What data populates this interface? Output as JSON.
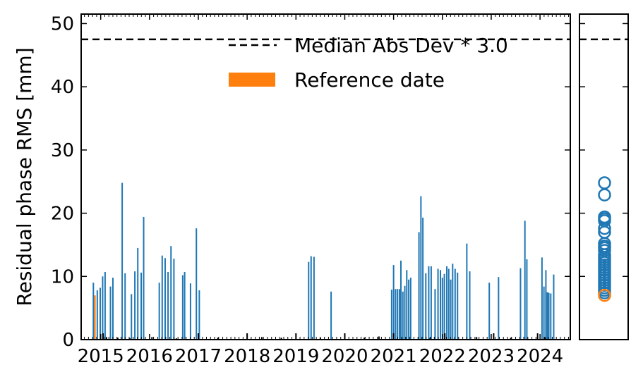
{
  "chart_data": {
    "type": "bar",
    "ylabel": "Residual phase RMS [mm]",
    "xlabel": "",
    "xlim": [
      2014.6,
      2024.62
    ],
    "ylim": [
      0,
      51.5
    ],
    "x_ticks": [
      2015,
      2016,
      2017,
      2018,
      2019,
      2020,
      2021,
      2022,
      2023,
      2024
    ],
    "y_ticks": [
      0,
      10,
      20,
      30,
      40,
      50
    ],
    "threshold": {
      "label": "Median Abs Dev * 3.0",
      "value": 47.5
    },
    "reference": {
      "label": "Reference date",
      "date": 2014.88,
      "value": 7.0,
      "color": "#ff7f0e"
    },
    "series_color": "#1f77b4",
    "legend_position": "top-right",
    "bars": [
      {
        "x": 2014.85,
        "y": 9.0
      },
      {
        "x": 2014.93,
        "y": 7.8
      },
      {
        "x": 2014.99,
        "y": 8.2
      },
      {
        "x": 2015.04,
        "y": 10.0
      },
      {
        "x": 2015.09,
        "y": 10.7
      },
      {
        "x": 2015.2,
        "y": 8.4
      },
      {
        "x": 2015.25,
        "y": 9.8
      },
      {
        "x": 2015.44,
        "y": 24.8
      },
      {
        "x": 2015.5,
        "y": 10.5
      },
      {
        "x": 2015.63,
        "y": 7.2
      },
      {
        "x": 2015.7,
        "y": 10.8
      },
      {
        "x": 2015.76,
        "y": 14.5
      },
      {
        "x": 2015.83,
        "y": 10.6
      },
      {
        "x": 2015.88,
        "y": 19.4
      },
      {
        "x": 2016.2,
        "y": 9.0
      },
      {
        "x": 2016.26,
        "y": 13.3
      },
      {
        "x": 2016.32,
        "y": 12.9
      },
      {
        "x": 2016.38,
        "y": 10.7
      },
      {
        "x": 2016.44,
        "y": 14.8
      },
      {
        "x": 2016.5,
        "y": 12.8
      },
      {
        "x": 2016.68,
        "y": 10.2
      },
      {
        "x": 2016.72,
        "y": 10.7
      },
      {
        "x": 2016.84,
        "y": 8.9
      },
      {
        "x": 2016.96,
        "y": 17.6
      },
      {
        "x": 2017.02,
        "y": 7.8
      },
      {
        "x": 2019.26,
        "y": 12.3
      },
      {
        "x": 2019.31,
        "y": 13.2
      },
      {
        "x": 2019.37,
        "y": 13.1
      },
      {
        "x": 2019.72,
        "y": 7.6
      },
      {
        "x": 2020.96,
        "y": 7.9
      },
      {
        "x": 2021.0,
        "y": 11.8
      },
      {
        "x": 2021.04,
        "y": 8.0
      },
      {
        "x": 2021.08,
        "y": 8.0
      },
      {
        "x": 2021.12,
        "y": 8.0
      },
      {
        "x": 2021.15,
        "y": 12.5
      },
      {
        "x": 2021.19,
        "y": 7.6
      },
      {
        "x": 2021.23,
        "y": 8.5
      },
      {
        "x": 2021.27,
        "y": 11.0
      },
      {
        "x": 2021.31,
        "y": 9.5
      },
      {
        "x": 2021.35,
        "y": 9.8
      },
      {
        "x": 2021.52,
        "y": 17.0
      },
      {
        "x": 2021.56,
        "y": 22.7
      },
      {
        "x": 2021.6,
        "y": 19.3
      },
      {
        "x": 2021.66,
        "y": 10.5
      },
      {
        "x": 2021.72,
        "y": 11.6
      },
      {
        "x": 2021.77,
        "y": 11.6
      },
      {
        "x": 2021.85,
        "y": 8.0
      },
      {
        "x": 2021.91,
        "y": 11.2
      },
      {
        "x": 2021.96,
        "y": 11.0
      },
      {
        "x": 2022.0,
        "y": 9.8
      },
      {
        "x": 2022.04,
        "y": 10.4
      },
      {
        "x": 2022.09,
        "y": 11.6
      },
      {
        "x": 2022.13,
        "y": 11.2
      },
      {
        "x": 2022.17,
        "y": 9.5
      },
      {
        "x": 2022.21,
        "y": 12.0
      },
      {
        "x": 2022.26,
        "y": 11.2
      },
      {
        "x": 2022.31,
        "y": 10.6
      },
      {
        "x": 2022.5,
        "y": 15.2
      },
      {
        "x": 2022.56,
        "y": 10.8
      },
      {
        "x": 2022.96,
        "y": 9.0
      },
      {
        "x": 2023.15,
        "y": 9.9
      },
      {
        "x": 2023.6,
        "y": 11.3
      },
      {
        "x": 2023.69,
        "y": 18.8
      },
      {
        "x": 2023.73,
        "y": 12.7
      },
      {
        "x": 2024.04,
        "y": 13.0
      },
      {
        "x": 2024.08,
        "y": 8.4
      },
      {
        "x": 2024.12,
        "y": 11.0
      },
      {
        "x": 2024.15,
        "y": 7.5
      },
      {
        "x": 2024.18,
        "y": 7.4
      },
      {
        "x": 2024.22,
        "y": 7.3
      },
      {
        "x": 2024.28,
        "y": 10.3
      }
    ],
    "zero_marks": [
      {
        "x": 2014.88,
        "y": 0.3
      },
      {
        "x": 2015.05,
        "y": 1.0
      },
      {
        "x": 2015.12,
        "y": 0.4
      },
      {
        "x": 2015.35,
        "y": 0.3
      },
      {
        "x": 2015.6,
        "y": 0.2
      },
      {
        "x": 2016.05,
        "y": 0.4
      },
      {
        "x": 2016.55,
        "y": 0.2
      },
      {
        "x": 2017.0,
        "y": 1.0
      },
      {
        "x": 2017.4,
        "y": 0.3
      },
      {
        "x": 2018.0,
        "y": 1.0
      },
      {
        "x": 2018.3,
        "y": 0.4
      },
      {
        "x": 2018.7,
        "y": 0.3
      },
      {
        "x": 2019.0,
        "y": 1.0
      },
      {
        "x": 2019.5,
        "y": 0.3
      },
      {
        "x": 2020.0,
        "y": 1.0
      },
      {
        "x": 2020.4,
        "y": 0.3
      },
      {
        "x": 2020.7,
        "y": 0.5
      },
      {
        "x": 2021.0,
        "y": 1.0
      },
      {
        "x": 2021.75,
        "y": 0.3
      },
      {
        "x": 2022.05,
        "y": 1.0
      },
      {
        "x": 2022.7,
        "y": 0.4
      },
      {
        "x": 2023.05,
        "y": 1.0
      },
      {
        "x": 2023.4,
        "y": 0.3
      },
      {
        "x": 2023.95,
        "y": 1.0
      },
      {
        "x": 2024.1,
        "y": 0.4
      }
    ],
    "marginal_points": [
      24.8,
      22.9,
      19.4,
      19.1,
      18.8,
      17.6,
      17.0,
      15.2,
      14.8,
      14.5,
      14.1,
      13.4,
      13.0,
      12.6,
      12.2,
      11.8,
      11.4,
      11.0,
      10.6,
      10.2,
      9.8,
      9.4,
      9.0,
      8.6,
      8.2,
      7.8,
      7.4
    ],
    "marginal_reference": 7.0
  }
}
